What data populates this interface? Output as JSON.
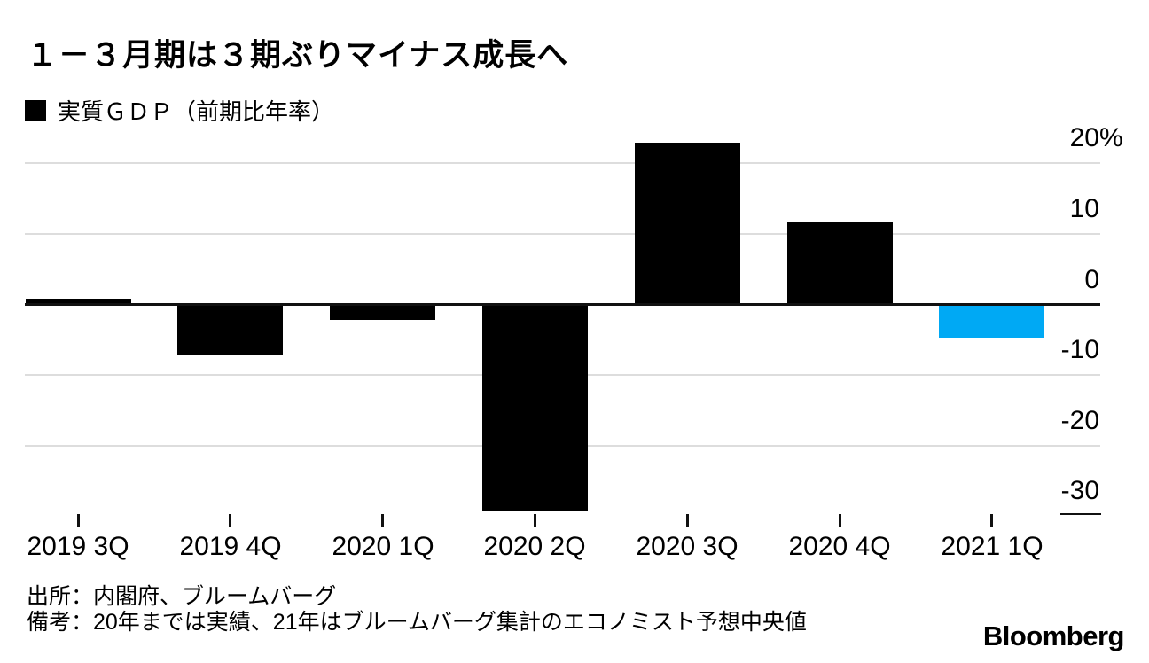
{
  "legend": {
    "swatch_color": "#000000"
  },
  "chart_data": {
    "type": "bar",
    "title": "１－３月期は３期ぶりマイナス成長へ",
    "series_label": "実質ＧＤＰ（前期比年率）",
    "categories": [
      "2019 3Q",
      "2019 4Q",
      "2020 1Q",
      "2020 2Q",
      "2020 3Q",
      "2020 4Q",
      "2021 1Q"
    ],
    "values": [
      0.8,
      -7.1,
      -2.1,
      -29.2,
      22.9,
      11.7,
      -4.6
    ],
    "bar_roles": [
      "actual",
      "actual",
      "actual",
      "actual",
      "actual",
      "actual",
      "forecast"
    ],
    "colors": {
      "actual": "#000000",
      "forecast": "#00A9F4",
      "gridline": "#DDDDDD",
      "axis": "#111111"
    },
    "unit": "%",
    "y_ticks": [
      {
        "value": 20,
        "label": "20",
        "suffix": "%"
      },
      {
        "value": 10,
        "label": "10"
      },
      {
        "value": 0,
        "label": "0"
      },
      {
        "value": -10,
        "label": "-10"
      },
      {
        "value": -20,
        "label": "-20"
      },
      {
        "value": -30,
        "label": "-30"
      }
    ],
    "ylim": [
      -32.5,
      23.7
    ],
    "grid": "horizontal-light",
    "zero_line": true,
    "legend_position": "top-left"
  },
  "footer": {
    "source": "出所：内閣府、ブルームバーグ",
    "note": "備考：20年までは実績、21年はブルームバーグ集計のエコノミスト予想中央値",
    "brand": "Bloomberg"
  }
}
